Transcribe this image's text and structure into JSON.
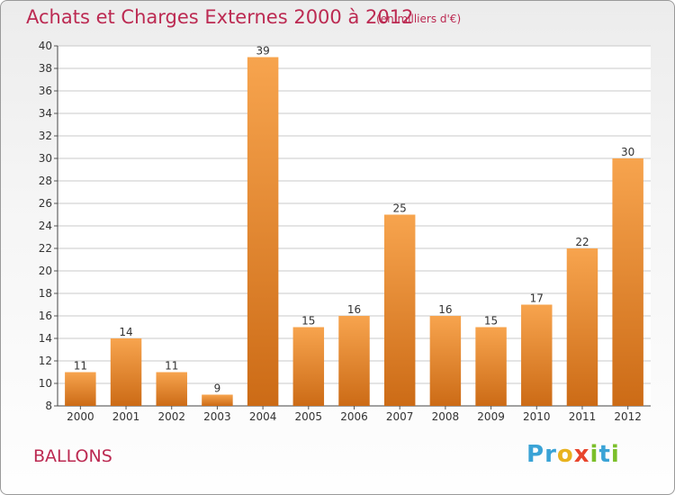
{
  "title": "Achats et Charges Externes 2000 à 2012",
  "subtitle": "(en milliers d'€)",
  "place": "BALLONS",
  "logo": {
    "text": [
      "P",
      "r",
      "o",
      "x",
      "i",
      "t",
      "i"
    ],
    "colors": [
      "#3aa3d6",
      "#3aa3d6",
      "#e8b21e",
      "#e8452c",
      "#7bbf2a",
      "#3aa3d6",
      "#7bbf2a"
    ]
  },
  "colors": {
    "title": "#bc2a52",
    "bar_light": "#f7a44e",
    "bar_dark": "#cc6b16",
    "grid": "#c8c8c8"
  },
  "chart_data": {
    "type": "bar",
    "categories": [
      "2000",
      "2001",
      "2002",
      "2003",
      "2004",
      "2005",
      "2006",
      "2007",
      "2008",
      "2009",
      "2010",
      "2011",
      "2012"
    ],
    "values": [
      11,
      14,
      11,
      9,
      39,
      15,
      16,
      25,
      16,
      15,
      17,
      22,
      30
    ],
    "title": "Achats et Charges Externes 2000 à 2012",
    "subtitle": "(en milliers d'€)",
    "ylim": [
      8,
      40
    ],
    "yticks": [
      8,
      10,
      12,
      14,
      16,
      18,
      20,
      22,
      24,
      26,
      28,
      30,
      32,
      34,
      36,
      38,
      40
    ],
    "grid": true
  }
}
